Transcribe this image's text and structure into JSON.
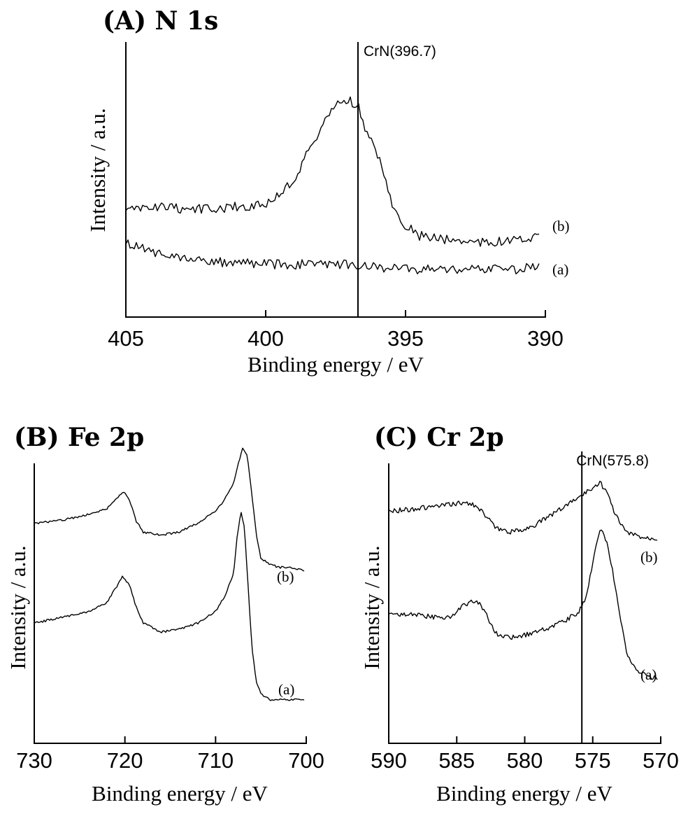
{
  "chart_data": [
    {
      "id": "A",
      "type": "line",
      "title": "(A) N 1s",
      "xlabel": "Binding energy / eV",
      "ylabel": "Intensity / a.u.",
      "xlim": [
        405,
        390
      ],
      "x_reversed": true,
      "ylim": [
        0,
        100
      ],
      "y_ticks_labeled": false,
      "xticks": [
        405,
        400,
        395,
        390
      ],
      "xtick_labels": [
        "405",
        "400",
        "395",
        "390"
      ],
      "reference_line": {
        "x": 396.7,
        "label": "CrN(396.7)"
      },
      "series": [
        {
          "name": "(b)",
          "points": [
            [
              405,
              40
            ],
            [
              404.5,
              41
            ],
            [
              404,
              42
            ],
            [
              403,
              41
            ],
            [
              402,
              41
            ],
            [
              401,
              42
            ],
            [
              400,
              43
            ],
            [
              399.5,
              47
            ],
            [
              399,
              53
            ],
            [
              398.5,
              64
            ],
            [
              398,
              75
            ],
            [
              397.5,
              84
            ],
            [
              397.2,
              87
            ],
            [
              397,
              86
            ],
            [
              396.7,
              84
            ],
            [
              396.5,
              75
            ],
            [
              396,
              64
            ],
            [
              395.5,
              44
            ],
            [
              395,
              34
            ],
            [
              394.5,
              30
            ],
            [
              394,
              29
            ],
            [
              393,
              28
            ],
            [
              392,
              27
            ],
            [
              391,
              28
            ],
            [
              390.2,
              29
            ]
          ]
        },
        {
          "name": "(a)",
          "points": [
            [
              405,
              27
            ],
            [
              404.5,
              25
            ],
            [
              404,
              23
            ],
            [
              403,
              21
            ],
            [
              402,
              19
            ],
            [
              401,
              19
            ],
            [
              400,
              18
            ],
            [
              399,
              18
            ],
            [
              398,
              18
            ],
            [
              397,
              18
            ],
            [
              396.7,
              17
            ],
            [
              396,
              17
            ],
            [
              395,
              16
            ],
            [
              394,
              16
            ],
            [
              393,
              16
            ],
            [
              392,
              16
            ],
            [
              391,
              16
            ],
            [
              390.2,
              17
            ]
          ]
        }
      ]
    },
    {
      "id": "B",
      "type": "line",
      "title": "(B) Fe 2p",
      "xlabel": "Binding energy / eV",
      "ylabel": "Intensity / a.u.",
      "xlim": [
        730,
        700
      ],
      "x_reversed": true,
      "ylim": [
        0,
        100
      ],
      "y_ticks_labeled": false,
      "xticks": [
        730,
        720,
        710,
        700
      ],
      "xtick_labels": [
        "730",
        "720",
        "710",
        "700"
      ],
      "series": [
        {
          "name": "(b)",
          "points": [
            [
              730,
              72
            ],
            [
              727,
              73
            ],
            [
              724,
              75
            ],
            [
              722,
              77
            ],
            [
              721,
              80
            ],
            [
              720.2,
              83
            ],
            [
              719.5,
              80
            ],
            [
              718.8,
              73
            ],
            [
              718,
              69
            ],
            [
              716,
              68
            ],
            [
              714,
              69
            ],
            [
              712,
              72
            ],
            [
              710,
              76
            ],
            [
              709,
              80
            ],
            [
              708,
              86
            ],
            [
              707.5,
              92
            ],
            [
              707,
              98
            ],
            [
              706.5,
              95
            ],
            [
              706,
              82
            ],
            [
              705.5,
              68
            ],
            [
              705,
              60
            ],
            [
              704,
              58
            ],
            [
              703,
              57
            ],
            [
              702,
              57
            ],
            [
              700.2,
              56
            ]
          ]
        },
        {
          "name": "(a)",
          "points": [
            [
              730,
              38
            ],
            [
              727,
              40
            ],
            [
              724,
              42
            ],
            [
              722,
              45
            ],
            [
              721,
              50
            ],
            [
              720.3,
              54
            ],
            [
              719.5,
              51
            ],
            [
              718.8,
              44
            ],
            [
              718,
              38
            ],
            [
              716,
              35
            ],
            [
              714,
              36
            ],
            [
              712,
              38
            ],
            [
              710,
              42
            ],
            [
              709,
              47
            ],
            [
              708,
              55
            ],
            [
              707.6,
              68
            ],
            [
              707.2,
              76
            ],
            [
              706.8,
              70
            ],
            [
              706.4,
              50
            ],
            [
              706,
              30
            ],
            [
              705.5,
              18
            ],
            [
              705,
              14
            ],
            [
              704,
              12
            ],
            [
              702,
              12
            ],
            [
              700.2,
              12
            ]
          ]
        }
      ]
    },
    {
      "id": "C",
      "type": "line",
      "title": "(C) Cr 2p",
      "xlabel": "Binding energy / eV",
      "ylabel": "Intensity / a.u.",
      "xlim": [
        590,
        570
      ],
      "x_reversed": true,
      "ylim": [
        0,
        100
      ],
      "y_ticks_labeled": false,
      "xticks": [
        590,
        585,
        580,
        575,
        570
      ],
      "xtick_labels": [
        "590",
        "585",
        "580",
        "575",
        "570"
      ],
      "reference_line": {
        "x": 575.8,
        "label": "CrN(575.8)"
      },
      "series": [
        {
          "name": "(b)",
          "points": [
            [
              590,
              76
            ],
            [
              588,
              77
            ],
            [
              586,
              78
            ],
            [
              584.5,
              79
            ],
            [
              583.5,
              78
            ],
            [
              582.8,
              74
            ],
            [
              582,
              70
            ],
            [
              581,
              69
            ],
            [
              580,
              70
            ],
            [
              579,
              72
            ],
            [
              578,
              75
            ],
            [
              577,
              78
            ],
            [
              576,
              81
            ],
            [
              575,
              84
            ],
            [
              574.5,
              86
            ],
            [
              574,
              83
            ],
            [
              573.5,
              77
            ],
            [
              573,
              72
            ],
            [
              572.5,
              69
            ],
            [
              572,
              68
            ],
            [
              571,
              67
            ],
            [
              570.2,
              67
            ]
          ]
        },
        {
          "name": "(a)",
          "points": [
            [
              590,
              41
            ],
            [
              588,
              41
            ],
            [
              586.5,
              40
            ],
            [
              585.5,
              40
            ],
            [
              584.5,
              44
            ],
            [
              583.8,
              46
            ],
            [
              583.2,
              44
            ],
            [
              582.5,
              38
            ],
            [
              582,
              34
            ],
            [
              581,
              33
            ],
            [
              580,
              34
            ],
            [
              579,
              35
            ],
            [
              578,
              37
            ],
            [
              577,
              39
            ],
            [
              576,
              42
            ],
            [
              575.5,
              47
            ],
            [
              575,
              58
            ],
            [
              574.6,
              68
            ],
            [
              574.3,
              70
            ],
            [
              574,
              66
            ],
            [
              573.5,
              55
            ],
            [
              573,
              40
            ],
            [
              572.5,
              28
            ],
            [
              572,
              23
            ],
            [
              571,
              20
            ],
            [
              570.2,
              19
            ]
          ]
        }
      ]
    }
  ]
}
